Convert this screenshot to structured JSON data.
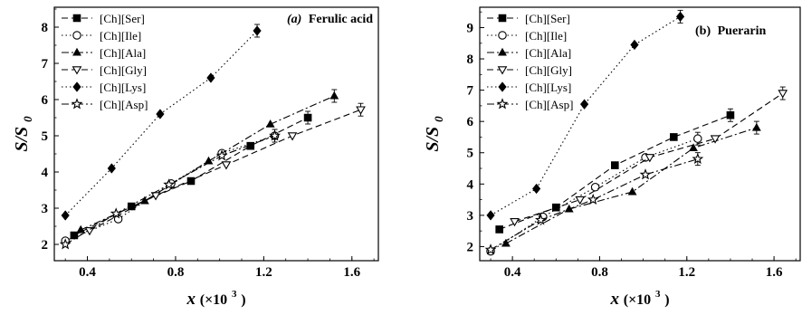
{
  "chart_data": [
    {
      "type": "scatter",
      "title": "(a) Ferulic acid",
      "title_parts": {
        "letter": "(a)",
        "name": "Ferulic acid"
      },
      "xlabel": "x (×10³)",
      "xlabel_parts": {
        "var": "x",
        "prefix": " (×10",
        "sup": "3",
        "suffix": ")"
      },
      "ylabel": "S/S0",
      "ylabel_parts": {
        "main": "S/S",
        "sub": "0"
      },
      "xlim": [
        0.25,
        1.72
      ],
      "ylim": [
        1.55,
        8.55
      ],
      "xticks": [
        0.4,
        0.8,
        1.2,
        1.6
      ],
      "xticklabels": [
        "0.4",
        "0.8",
        "1.2",
        "1.6"
      ],
      "yticks": [
        2,
        3,
        4,
        5,
        6,
        7,
        8
      ],
      "yticklabels": [
        "2",
        "3",
        "4",
        "5",
        "6",
        "7",
        "8"
      ],
      "grid": false,
      "legend": "top-left",
      "series": [
        {
          "name": "[Ch][Ser]",
          "marker": "square",
          "line": "dashed",
          "x": [
            0.34,
            0.6,
            0.87,
            1.14,
            1.4
          ],
          "y": [
            2.25,
            3.05,
            3.75,
            4.72,
            5.5
          ]
        },
        {
          "name": "[Ch][Ile]",
          "marker": "circle-open",
          "line": "dotted",
          "x": [
            0.3,
            0.54,
            0.78,
            1.01,
            1.25
          ],
          "y": [
            2.1,
            2.7,
            3.68,
            4.52,
            5.0
          ]
        },
        {
          "name": "[Ch][Ala]",
          "marker": "triangle",
          "line": "dashdot",
          "x": [
            0.37,
            0.66,
            0.95,
            1.23,
            1.52
          ],
          "y": [
            2.4,
            3.2,
            4.3,
            5.32,
            6.1
          ]
        },
        {
          "name": "[Ch][Gly]",
          "marker": "triangle-down-open",
          "line": "dashed",
          "x": [
            0.41,
            0.71,
            1.03,
            1.33,
            1.64
          ],
          "y": [
            2.38,
            3.35,
            4.2,
            5.0,
            5.72
          ]
        },
        {
          "name": "[Ch][Lys]",
          "marker": "diamond",
          "line": "dotted",
          "x": [
            0.3,
            0.51,
            0.73,
            0.96,
            1.17
          ],
          "y": [
            2.8,
            4.1,
            5.6,
            6.6,
            7.9
          ]
        },
        {
          "name": "[Ch][Asp]",
          "marker": "star-open",
          "line": "dashdot",
          "x": [
            0.3,
            0.53,
            0.77,
            1.01,
            1.25
          ],
          "y": [
            2.0,
            2.85,
            3.65,
            4.45,
            5.0
          ]
        }
      ]
    },
    {
      "type": "scatter",
      "title": "(b) Puerarin",
      "title_parts": {
        "letter": "(b)",
        "name": "Puerarin"
      },
      "xlabel": "x (×10³)",
      "xlabel_parts": {
        "var": "x",
        "prefix": " (×10",
        "sup": "3",
        "suffix": ")"
      },
      "ylabel": "S/S0",
      "ylabel_parts": {
        "main": "S/S",
        "sub": "0"
      },
      "xlim": [
        0.25,
        1.72
      ],
      "ylim": [
        1.55,
        9.65
      ],
      "xticks": [
        0.4,
        0.8,
        1.2,
        1.6
      ],
      "xticklabels": [
        "0.4",
        "0.8",
        "1.2",
        "1.6"
      ],
      "yticks": [
        2,
        3,
        4,
        5,
        6,
        7,
        8,
        9
      ],
      "yticklabels": [
        "2",
        "3",
        "4",
        "5",
        "6",
        "7",
        "8",
        "9"
      ],
      "grid": false,
      "legend": "top-left",
      "series": [
        {
          "name": "[Ch][Ser]",
          "marker": "square",
          "line": "dashed",
          "x": [
            0.34,
            0.6,
            0.87,
            1.14,
            1.4
          ],
          "y": [
            2.55,
            3.25,
            4.6,
            5.5,
            6.2
          ]
        },
        {
          "name": "[Ch][Ile]",
          "marker": "circle-open",
          "line": "dotted",
          "x": [
            0.3,
            0.54,
            0.78,
            1.01,
            1.25
          ],
          "y": [
            1.85,
            2.95,
            3.9,
            4.85,
            5.45
          ]
        },
        {
          "name": "[Ch][Ala]",
          "marker": "triangle",
          "line": "dashdot",
          "x": [
            0.37,
            0.66,
            0.95,
            1.23,
            1.52
          ],
          "y": [
            2.1,
            3.2,
            3.75,
            5.15,
            5.8
          ]
        },
        {
          "name": "[Ch][Gly]",
          "marker": "triangle-down-open",
          "line": "dashed",
          "x": [
            0.41,
            0.71,
            1.03,
            1.33,
            1.64
          ],
          "y": [
            2.8,
            3.5,
            4.85,
            5.45,
            6.9
          ]
        },
        {
          "name": "[Ch][Lys]",
          "marker": "diamond",
          "line": "dotted",
          "x": [
            0.3,
            0.51,
            0.73,
            0.96,
            1.17
          ],
          "y": [
            3.0,
            3.85,
            6.55,
            8.45,
            9.35
          ]
        },
        {
          "name": "[Ch][Asp]",
          "marker": "star-open",
          "line": "dashdot",
          "x": [
            0.3,
            0.53,
            0.77,
            1.01,
            1.25
          ],
          "y": [
            1.9,
            2.85,
            3.5,
            4.3,
            4.8
          ]
        }
      ]
    }
  ]
}
